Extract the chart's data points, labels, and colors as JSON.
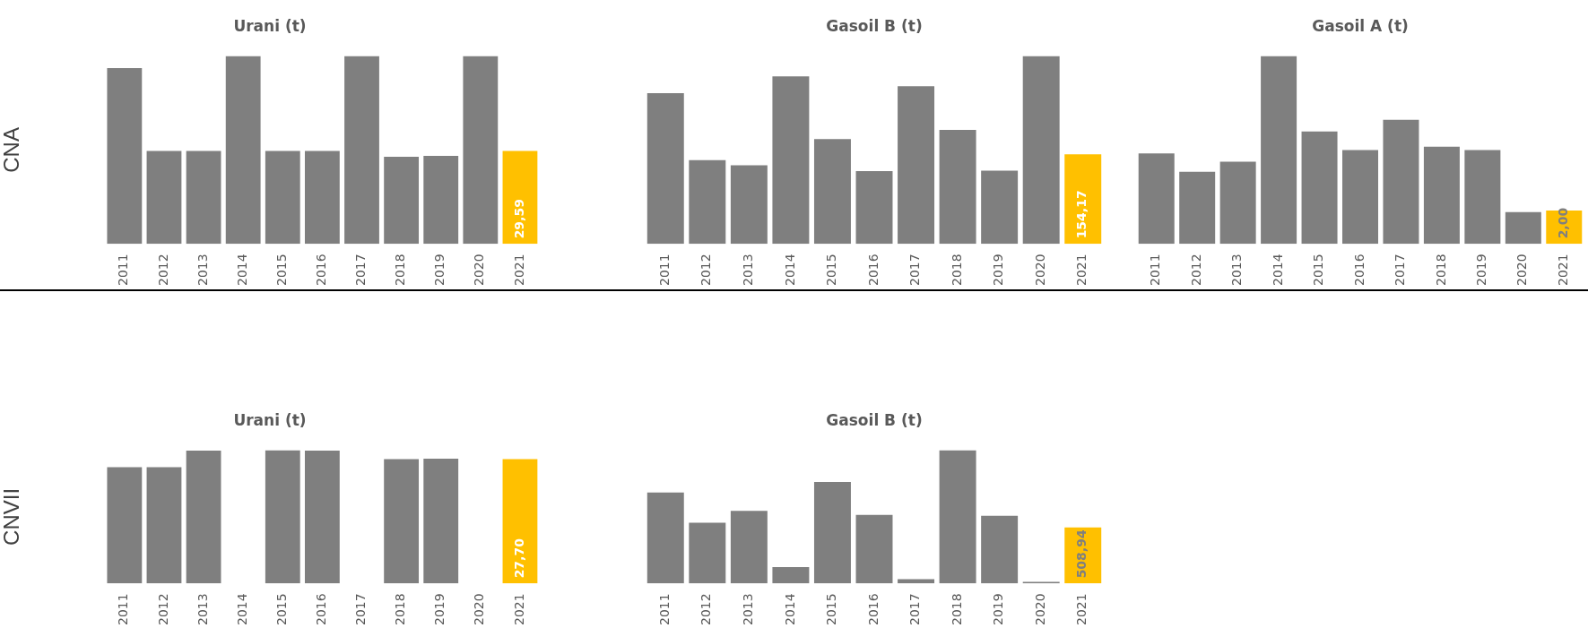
{
  "chart_data": [
    {
      "type": "bar",
      "title": "Urani (t)",
      "ylabel": "CNA",
      "categories": [
        "2011",
        "2012",
        "2013",
        "2014",
        "2015",
        "2016",
        "2017",
        "2018",
        "2019",
        "2020",
        "2021"
      ],
      "values": [
        55.9,
        29.6,
        29.6,
        59.8,
        29.6,
        29.6,
        59.8,
        27.7,
        28.0,
        59.8,
        29.59
      ],
      "colors": [
        "#7f7f7f",
        "#7f7f7f",
        "#7f7f7f",
        "#7f7f7f",
        "#7f7f7f",
        "#7f7f7f",
        "#7f7f7f",
        "#7f7f7f",
        "#7f7f7f",
        "#7f7f7f",
        "#ffc000"
      ],
      "value_labels": [
        null,
        null,
        null,
        null,
        null,
        null,
        null,
        null,
        null,
        null,
        "29,59"
      ]
    },
    {
      "type": "bar",
      "title": "Gasoil B (t)",
      "categories": [
        "2011",
        "2012",
        "2013",
        "2014",
        "2015",
        "2016",
        "2017",
        "2018",
        "2019",
        "2020",
        "2021"
      ],
      "values": [
        259,
        144,
        135,
        288,
        180,
        125,
        271,
        196,
        126,
        323,
        154.17
      ],
      "colors": [
        "#7f7f7f",
        "#7f7f7f",
        "#7f7f7f",
        "#7f7f7f",
        "#7f7f7f",
        "#7f7f7f",
        "#7f7f7f",
        "#7f7f7f",
        "#7f7f7f",
        "#7f7f7f",
        "#ffc000"
      ],
      "value_labels": [
        null,
        null,
        null,
        null,
        null,
        null,
        null,
        null,
        null,
        null,
        "154,17"
      ]
    },
    {
      "type": "bar",
      "title": "Gasoil A (t)",
      "categories": [
        "2011",
        "2012",
        "2013",
        "2014",
        "2015",
        "2016",
        "2017",
        "2018",
        "2019",
        "2020",
        "2021"
      ],
      "values": [
        5.4,
        4.3,
        4.9,
        11.2,
        6.7,
        5.6,
        7.4,
        5.8,
        5.6,
        1.9,
        2.0
      ],
      "colors": [
        "#7f7f7f",
        "#7f7f7f",
        "#7f7f7f",
        "#7f7f7f",
        "#7f7f7f",
        "#7f7f7f",
        "#7f7f7f",
        "#7f7f7f",
        "#7f7f7f",
        "#7f7f7f",
        "#ffc000"
      ],
      "value_labels": [
        null,
        null,
        null,
        null,
        null,
        null,
        null,
        null,
        null,
        null,
        "2,00"
      ]
    },
    {
      "type": "bar",
      "title": "Urani (t)",
      "ylabel": "CNVII",
      "categories": [
        "2011",
        "2012",
        "2013",
        "2014",
        "2015",
        "2016",
        "2017",
        "2018",
        "2019",
        "2020",
        "2021"
      ],
      "values": [
        25.9,
        25.9,
        29.6,
        0,
        29.7,
        29.6,
        0,
        27.7,
        27.8,
        0,
        27.7
      ],
      "colors": [
        "#7f7f7f",
        "#7f7f7f",
        "#7f7f7f",
        "#7f7f7f",
        "#7f7f7f",
        "#7f7f7f",
        "#7f7f7f",
        "#7f7f7f",
        "#7f7f7f",
        "#7f7f7f",
        "#ffc000"
      ],
      "value_labels": [
        null,
        null,
        null,
        null,
        null,
        null,
        null,
        null,
        null,
        null,
        "27,70"
      ]
    },
    {
      "type": "bar",
      "title": "Gasoil B (t)",
      "categories": [
        "2011",
        "2012",
        "2013",
        "2014",
        "2015",
        "2016",
        "2017",
        "2018",
        "2019",
        "2020",
        "2021"
      ],
      "values": [
        824,
        551,
        658,
        149,
        920,
        621,
        40,
        1209,
        614,
        16,
        508.94
      ],
      "colors": [
        "#7f7f7f",
        "#7f7f7f",
        "#7f7f7f",
        "#7f7f7f",
        "#7f7f7f",
        "#7f7f7f",
        "#7f7f7f",
        "#7f7f7f",
        "#7f7f7f",
        "#7f7f7f",
        "#ffc000"
      ],
      "value_labels": [
        null,
        null,
        null,
        null,
        null,
        null,
        null,
        null,
        null,
        null,
        "508,94"
      ]
    }
  ]
}
